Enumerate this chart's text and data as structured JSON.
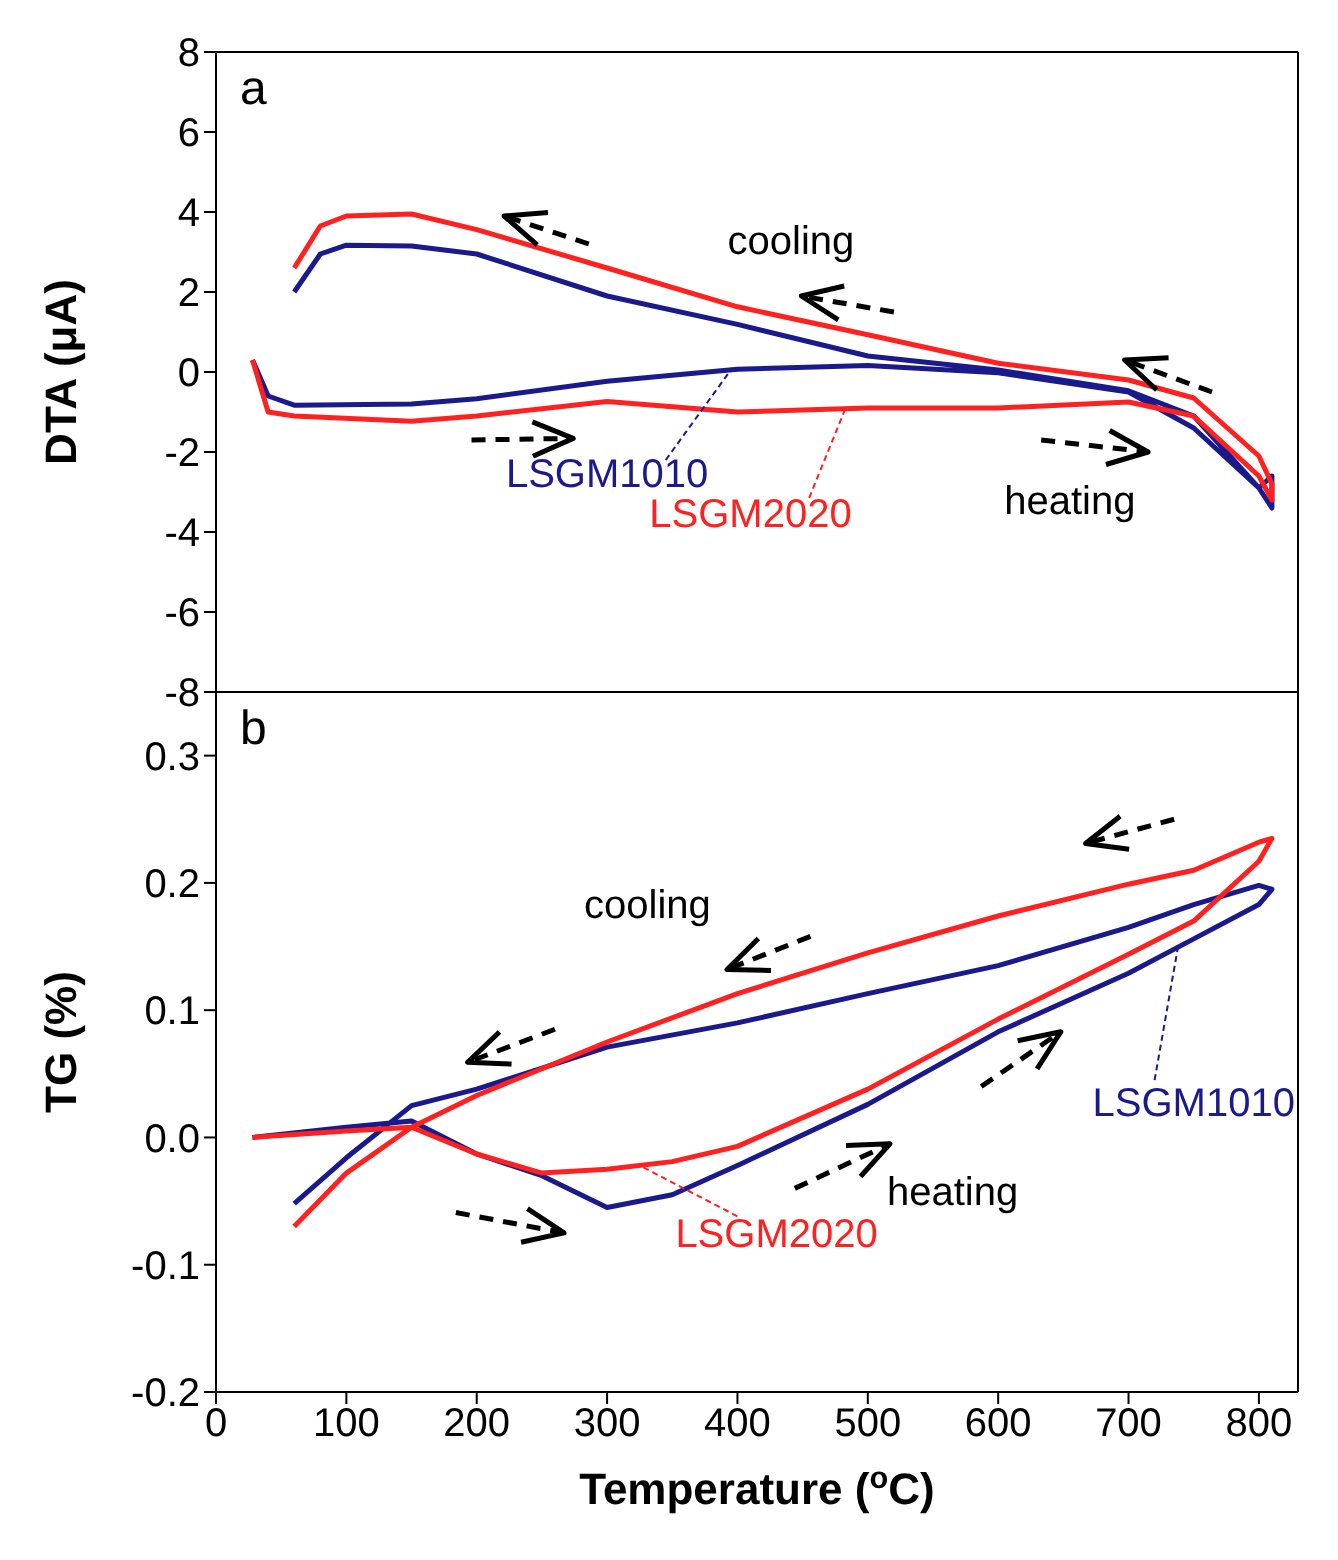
{
  "chart_data": [
    {
      "type": "line",
      "title": "a",
      "ylabel": "DTA (μA)",
      "xlim": [
        0,
        830
      ],
      "xticks": [
        0,
        100,
        200,
        300,
        400,
        500,
        600,
        700,
        800
      ],
      "ylim": [
        -8,
        8
      ],
      "yticks": [
        -8,
        -6,
        -4,
        -2,
        0,
        2,
        4,
        6,
        8
      ],
      "tick_labels": "y",
      "marker": "none",
      "legend": "center",
      "annotations": [
        "cooling",
        "heating"
      ],
      "series": [
        {
          "name": "LSGM1010",
          "color": "#1a1a8c",
          "x": [
            28,
            40,
            60,
            150,
            200,
            300,
            400,
            500,
            600,
            700,
            750,
            800,
            810,
            810,
            800,
            750,
            700,
            600,
            500,
            400,
            300,
            200,
            150,
            100,
            80,
            60
          ],
          "values": [
            0.3,
            -0.6,
            -0.83,
            -0.8,
            -0.67,
            -0.23,
            0.07,
            0.16,
            -0.02,
            -0.5,
            -1.4,
            -2.9,
            -3.4,
            -2.6,
            -2.9,
            -1.1,
            -0.47,
            0.05,
            0.4,
            1.19,
            1.9,
            2.95,
            3.15,
            3.17,
            2.95,
            2.0
          ]
        },
        {
          "name": "LSGM2020",
          "color": "#ff2020",
          "x": [
            28,
            40,
            60,
            150,
            200,
            300,
            400,
            500,
            600,
            700,
            750,
            800,
            810,
            810,
            800,
            750,
            700,
            600,
            500,
            400,
            300,
            200,
            150,
            100,
            80,
            60
          ],
          "values": [
            0.3,
            -1.0,
            -1.1,
            -1.23,
            -1.1,
            -0.74,
            -1.0,
            -0.9,
            -0.9,
            -0.75,
            -1.1,
            -2.6,
            -3.2,
            -2.8,
            -2.1,
            -0.65,
            -0.2,
            0.22,
            0.93,
            1.63,
            2.6,
            3.56,
            3.95,
            3.9,
            3.65,
            2.6
          ]
        }
      ]
    },
    {
      "type": "line",
      "title": "b",
      "ylabel": "TG (%)",
      "xlabel": "Temperature ($^{o}$C)",
      "xlim": [
        0,
        830
      ],
      "xticks": [
        0,
        100,
        200,
        300,
        400,
        500,
        600,
        700,
        800
      ],
      "ylim": [
        -0.2,
        0.35
      ],
      "yticks": [
        -0.2,
        -0.1,
        {
          "value": 0,
          "label": "0.0"
        },
        0.1,
        0.2,
        0.3
      ],
      "marker": "none",
      "annotations": [
        "cooling",
        "heating"
      ],
      "series": [
        {
          "name": "LSGM1010",
          "color": "#1a1a8c",
          "x": [
            28,
            100,
            150,
            200,
            250,
            300,
            350,
            400,
            500,
            600,
            700,
            750,
            800,
            810,
            800,
            750,
            700,
            600,
            500,
            400,
            300,
            200,
            150,
            100,
            60
          ],
          "values": [
            0.0,
            0.008,
            0.013,
            -0.013,
            -0.03,
            -0.055,
            -0.045,
            -0.022,
            0.026,
            0.083,
            0.129,
            0.156,
            0.183,
            0.195,
            0.198,
            0.183,
            0.165,
            0.135,
            0.113,
            0.09,
            0.071,
            0.038,
            0.025,
            -0.016,
            -0.052
          ]
        },
        {
          "name": "LSGM2020",
          "color": "#ff2020",
          "x": [
            28,
            100,
            150,
            200,
            250,
            300,
            350,
            400,
            500,
            600,
            700,
            750,
            800,
            810,
            800,
            750,
            700,
            600,
            500,
            400,
            300,
            200,
            150,
            100,
            60
          ],
          "values": [
            0.0,
            0.005,
            0.008,
            -0.013,
            -0.028,
            -0.025,
            -0.019,
            -0.007,
            0.038,
            0.093,
            0.144,
            0.17,
            0.217,
            0.235,
            0.232,
            0.21,
            0.199,
            0.174,
            0.145,
            0.113,
            0.075,
            0.033,
            0.008,
            -0.028,
            -0.07
          ]
        }
      ]
    }
  ]
}
